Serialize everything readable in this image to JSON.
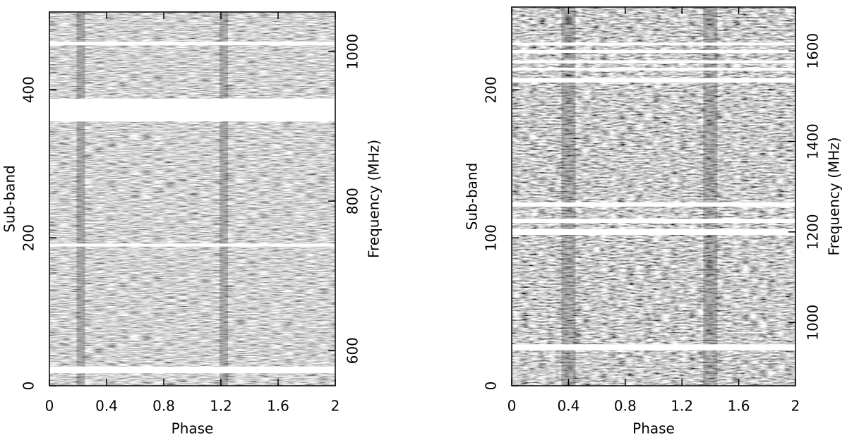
{
  "chart_data": [
    {
      "type": "heatmap",
      "xlabel": "Phase",
      "ylabel": "Sub-band",
      "y2label": "Frequency (MHz)",
      "xlim": [
        0,
        2
      ],
      "xticks": [
        0,
        0.4,
        0.8,
        1.2,
        1.6,
        2
      ],
      "ylim": [
        0,
        505
      ],
      "yticks": [
        0,
        200,
        400
      ],
      "y2lim": [
        553,
        1053
      ],
      "y2ticks": [
        600,
        800,
        1000
      ],
      "masked_subbands": [
        [
          17,
          26
        ],
        [
          188,
          192
        ],
        [
          357,
          388
        ],
        [
          460,
          465
        ]
      ],
      "pulse_phases": [
        0.22,
        1.22
      ]
    },
    {
      "type": "heatmap",
      "xlabel": "Phase",
      "ylabel": "Sub-band",
      "y2label": "Frequency (MHz)",
      "xlim": [
        0,
        2
      ],
      "xticks": [
        0,
        0.4,
        0.8,
        1.2,
        1.6,
        2
      ],
      "ylim": [
        0,
        256
      ],
      "yticks": [
        0,
        100,
        200
      ],
      "y2lim": [
        860,
        1697
      ],
      "y2ticks": [
        1000,
        1200,
        1400,
        1600
      ],
      "masked_subbands": [
        [
          24,
          28
        ],
        [
          102,
          106
        ],
        [
          110,
          113
        ],
        [
          121,
          124
        ],
        [
          205,
          208
        ],
        [
          213,
          215
        ],
        [
          218,
          220
        ],
        [
          225,
          227
        ],
        [
          230,
          232
        ]
      ],
      "pulse_phases": [
        0.4,
        1.4
      ]
    }
  ]
}
